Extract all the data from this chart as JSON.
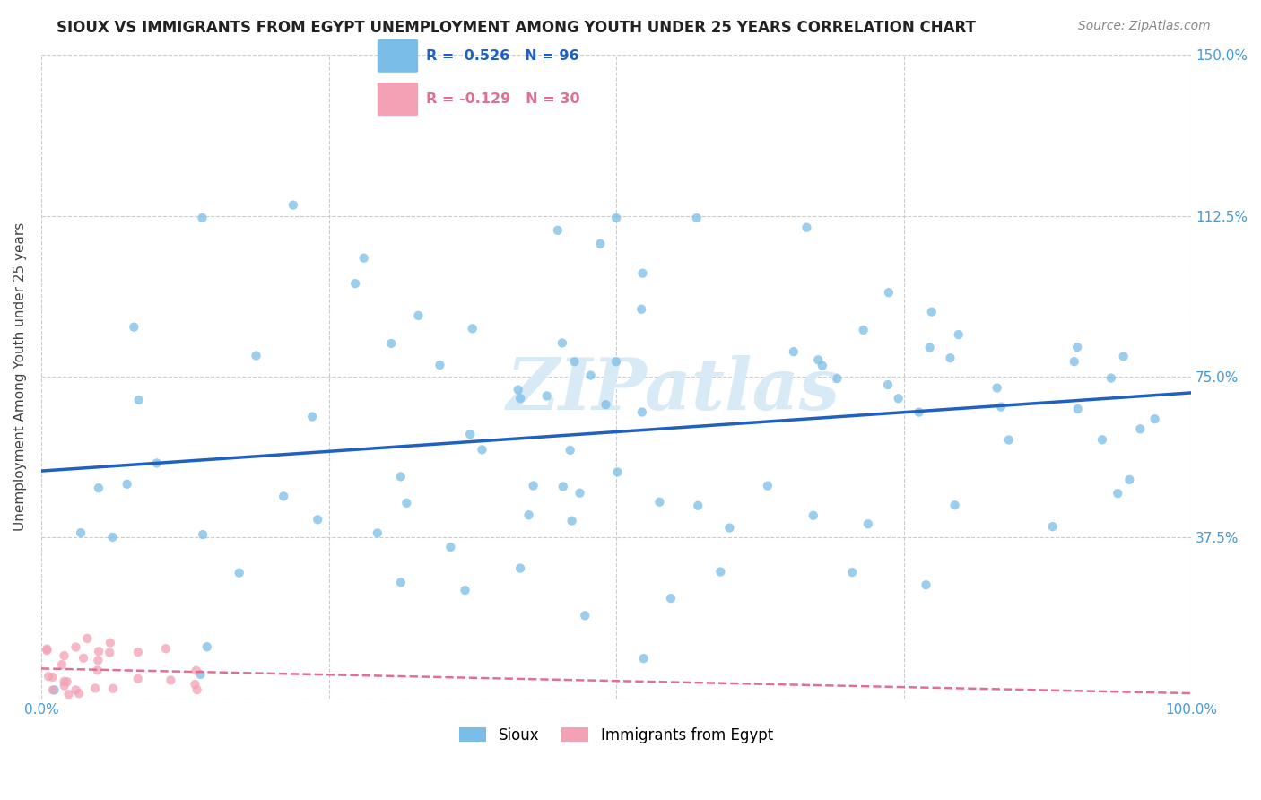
{
  "title": "SIOUX VS IMMIGRANTS FROM EGYPT UNEMPLOYMENT AMONG YOUTH UNDER 25 YEARS CORRELATION CHART",
  "source": "Source: ZipAtlas.com",
  "ylabel": "Unemployment Among Youth under 25 years",
  "xlim": [
    0,
    1
  ],
  "ylim": [
    0,
    1.5
  ],
  "xticks": [
    0.0,
    0.25,
    0.5,
    0.75,
    1.0
  ],
  "xtick_labels": [
    "0.0%",
    "",
    "",
    "",
    "100.0%"
  ],
  "yticks": [
    0.0,
    0.375,
    0.75,
    1.125,
    1.5
  ],
  "ytick_labels": [
    "",
    "37.5%",
    "75.0%",
    "112.5%",
    "150.0%"
  ],
  "sioux_R": 0.526,
  "sioux_N": 96,
  "egypt_R": -0.129,
  "egypt_N": 30,
  "sioux_color": "#7abde8",
  "egypt_color": "#f4a0b5",
  "sioux_line_color": "#2060c0",
  "egypt_line_color": "#e07090",
  "watermark_color": "#d8eaf5",
  "legend_sioux_label": "Sioux",
  "legend_egypt_label": "Immigrants from Egypt",
  "title_color": "#222222",
  "source_color": "#888888",
  "tick_color": "#4499dd",
  "grid_color": "#cccccc",
  "legend_text_color_sioux": "#2060c0",
  "legend_text_color_egypt": "#e07090"
}
